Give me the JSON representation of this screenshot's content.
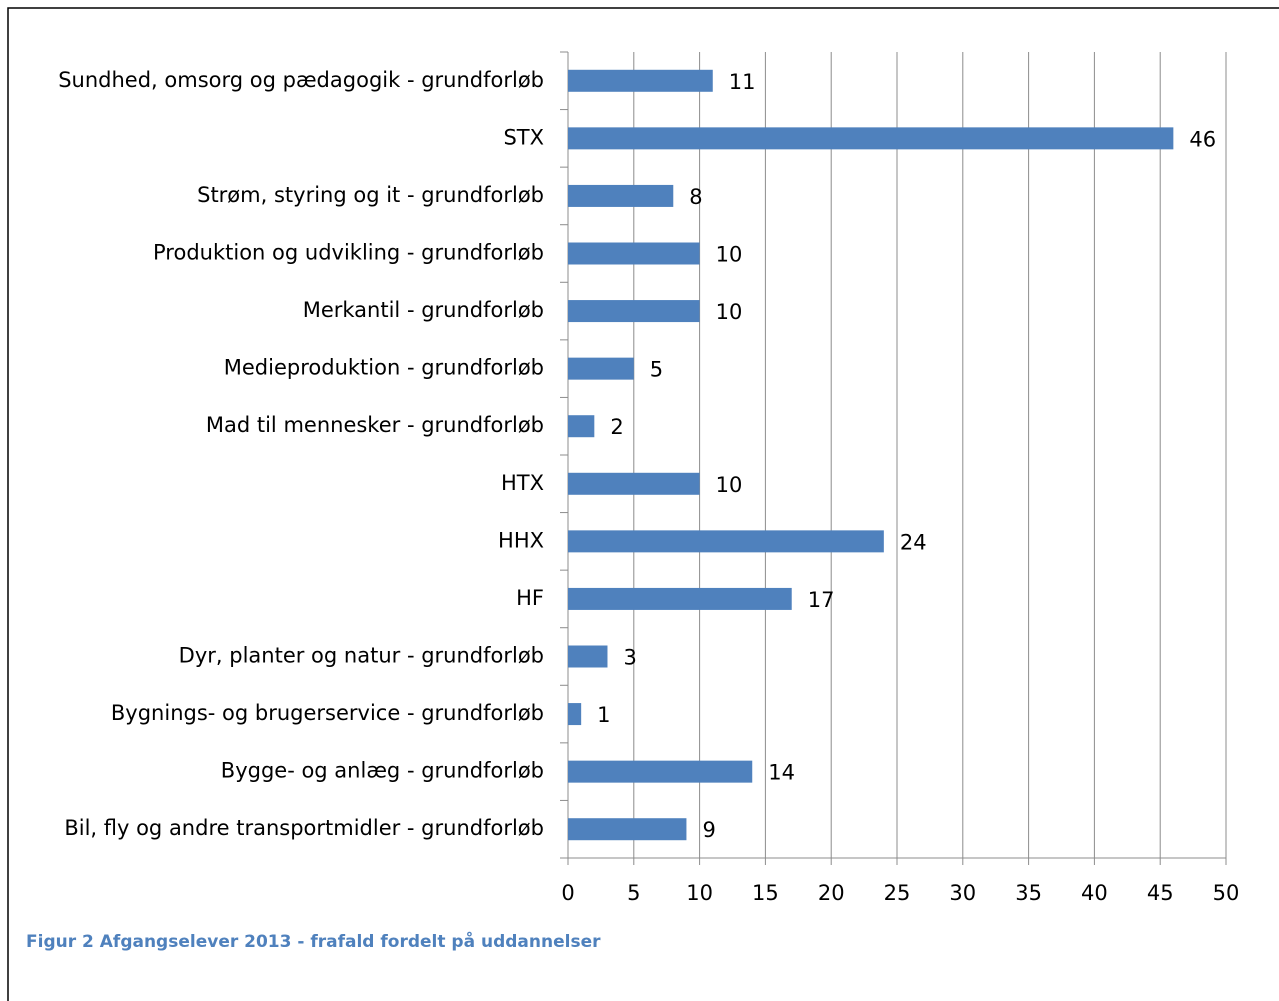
{
  "chart_data": {
    "type": "bar",
    "orientation": "horizontal",
    "caption": "Figur 2 Afgangselever 2013 - frafald fordelt på uddannelser",
    "categories": [
      "Sundhed, omsorg og pædagogik - grundforløb",
      "STX",
      "Strøm, styring og it - grundforløb",
      "Produktion og udvikling - grundforløb",
      "Merkantil - grundforløb",
      "Medieproduktion - grundforløb",
      "Mad til mennesker - grundforløb",
      "HTX",
      "HHX",
      "HF",
      "Dyr, planter og natur - grundforløb",
      "Bygnings- og brugerservice - grundforløb",
      "Bygge- og anlæg - grundforløb",
      "Bil, fly og andre transportmidler - grundforløb"
    ],
    "values": [
      11,
      46,
      8,
      10,
      10,
      5,
      2,
      10,
      24,
      17,
      3,
      1,
      14,
      9
    ],
    "color": "#4f81bd",
    "xlim": [
      0,
      50
    ],
    "xticks": [
      0,
      5,
      10,
      15,
      20,
      25,
      30,
      35,
      40,
      45,
      50
    ],
    "grid": true
  }
}
